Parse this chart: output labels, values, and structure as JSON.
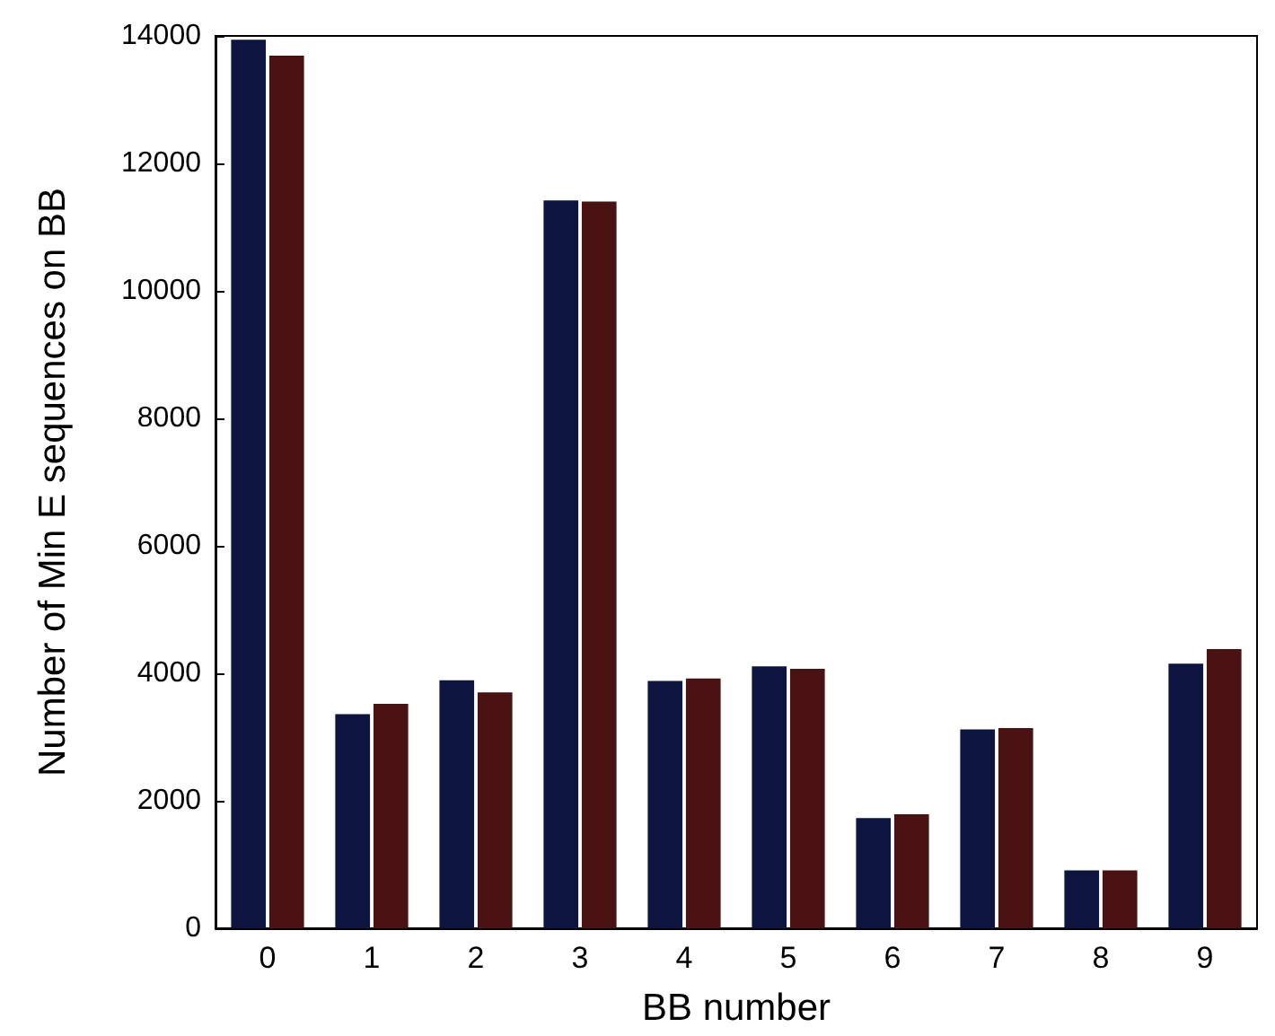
{
  "chart_data": {
    "type": "bar",
    "xlabel": "BB number",
    "ylabel": "Number of Min E sequences on BB",
    "categories": [
      "0",
      "1",
      "2",
      "3",
      "4",
      "5",
      "6",
      "7",
      "8",
      "9"
    ],
    "series": [
      {
        "color": "#0d1440",
        "values": [
          13940,
          3360,
          3890,
          11420,
          3880,
          4110,
          1730,
          3120,
          910,
          4150
        ]
      },
      {
        "color": "#4a1212",
        "values": [
          13690,
          3520,
          3700,
          11400,
          3920,
          4070,
          1790,
          3140,
          910,
          4380
        ]
      }
    ],
    "ylim": [
      0,
      14000
    ],
    "yticks": [
      0,
      2000,
      4000,
      6000,
      8000,
      10000,
      12000,
      14000
    ]
  }
}
